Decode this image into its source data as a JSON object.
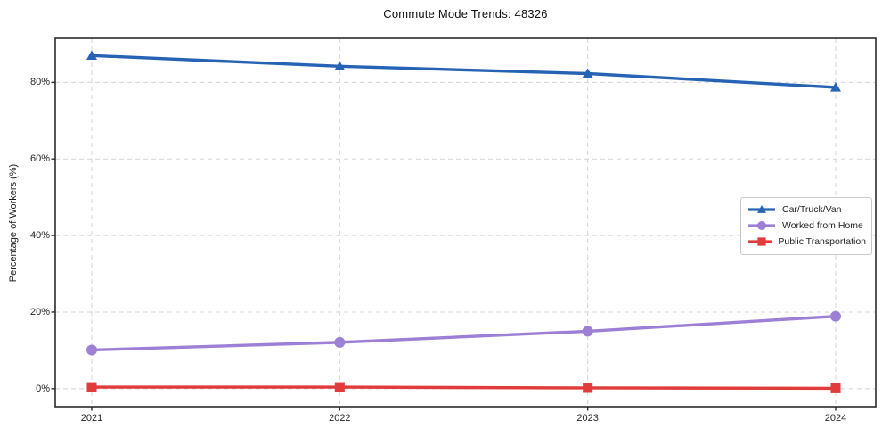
{
  "chart_data": {
    "type": "line",
    "title": "Commute Mode Trends: 48326",
    "xlabel": "",
    "ylabel": "Percentage of Workers (%)",
    "categories": [
      "2021",
      "2022",
      "2023",
      "2024"
    ],
    "series": [
      {
        "name": "Car/Truck/Van",
        "marker": "triangle",
        "color": "#2763b5",
        "values": [
          87.0,
          84.2,
          82.3,
          78.7
        ]
      },
      {
        "name": "Worked from Home",
        "marker": "circle",
        "color": "#9d7fd6",
        "values": [
          10.1,
          12.1,
          15.0,
          18.9
        ]
      },
      {
        "name": "Public Transportation",
        "marker": "square",
        "color": "#e13b3b",
        "values": [
          0.4,
          0.4,
          0.2,
          0.1
        ]
      }
    ],
    "yticks": [
      0,
      20,
      40,
      60,
      80
    ],
    "ytick_labels": [
      "0%",
      "20%",
      "40%",
      "60%",
      "80%"
    ],
    "xtick_labels": [
      "2021",
      "2022",
      "2023",
      "2024"
    ],
    "ylim": [
      -4.7,
      91.5
    ],
    "grid": true,
    "legend_position": "center right",
    "colors": {
      "grid": "#d4d4d4",
      "spine": "#2b2b2b",
      "background": "#ffffff"
    }
  }
}
